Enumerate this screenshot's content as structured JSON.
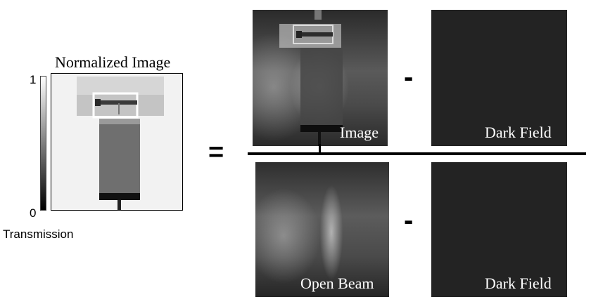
{
  "normalized": {
    "title": "Normalized Image",
    "colorbar": {
      "max_label": "1",
      "min_label": "0",
      "label": "Transmission"
    }
  },
  "operators": {
    "equals": "=",
    "minus": "-"
  },
  "panels": {
    "image": {
      "label": "Image"
    },
    "dark_field_top": {
      "label": "Dark Field"
    },
    "open_beam": {
      "label": "Open Beam"
    },
    "dark_field_bottom": {
      "label": "Dark Field"
    }
  },
  "colors": {
    "dark_field": "#232323",
    "background": "#ffffff"
  }
}
